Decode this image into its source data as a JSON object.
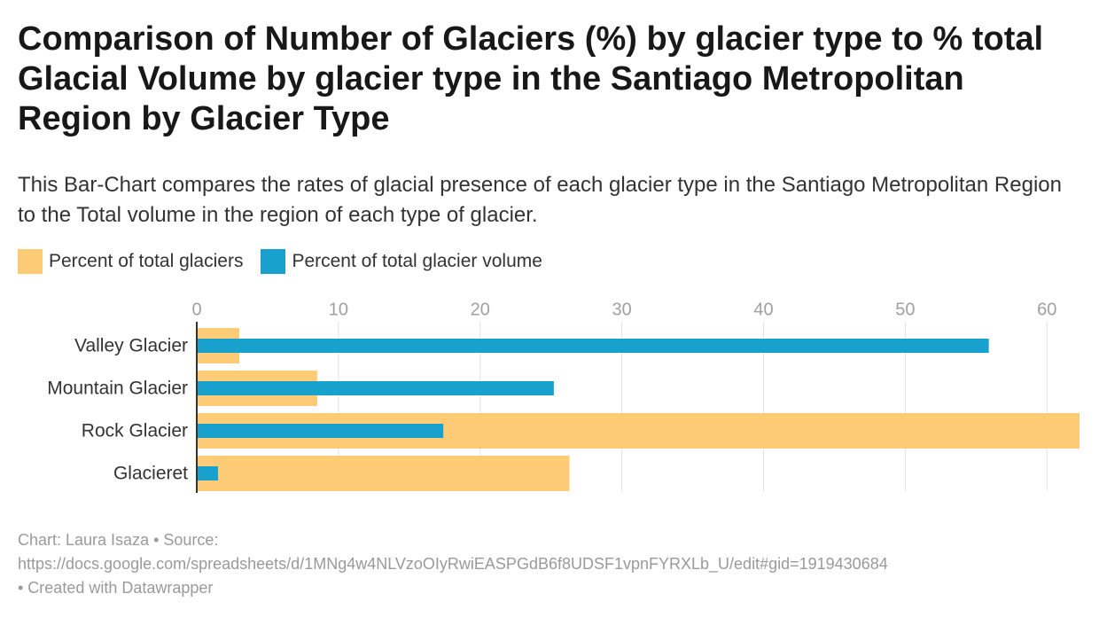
{
  "title": "Comparison of Number of Glaciers (%) by glacier type to % total Glacial Volume by glacier type in the Santiago Metropolitan Region by Glacier Type",
  "subtitle": "This Bar-Chart compares the rates of glacial presence of each glacier type in the Santiago Metropolitan Region to the Total volume in the region of each type of glacier.",
  "legend": {
    "items": [
      {
        "label": "Percent of total glaciers",
        "color": "#fdca76"
      },
      {
        "label": "Percent of total glacier volume",
        "color": "#18a1cd"
      }
    ]
  },
  "footer": {
    "line1": "Chart: Laura Isaza • Source:",
    "line2": "https://docs.google.com/spreadsheets/d/1MNg4w4NLVzoOIyRwiEASPGdB6f8UDSF1vpnFYRXLb_U/edit#gid=1919430684",
    "line3": "• Created with Datawrapper"
  },
  "chart_data": {
    "type": "bar",
    "orientation": "horizontal",
    "categories": [
      "Valley Glacier",
      "Mountain Glacier",
      "Rock Glacier",
      "Glacieret"
    ],
    "series": [
      {
        "name": "Percent of total glaciers",
        "color": "#fdca76",
        "values": [
          3.0,
          8.5,
          62.3,
          26.3
        ]
      },
      {
        "name": "Percent of total glacier volume",
        "color": "#18a1cd",
        "values": [
          55.9,
          25.2,
          17.4,
          1.5
        ]
      }
    ],
    "xlim": [
      0,
      62.3
    ],
    "xticks": [
      0,
      10,
      20,
      30,
      40,
      50,
      60
    ],
    "xtick_labels": [
      "0",
      "10",
      "20",
      "30",
      "40",
      "50",
      "60"
    ],
    "grid": true,
    "legend_position": "top-left"
  }
}
